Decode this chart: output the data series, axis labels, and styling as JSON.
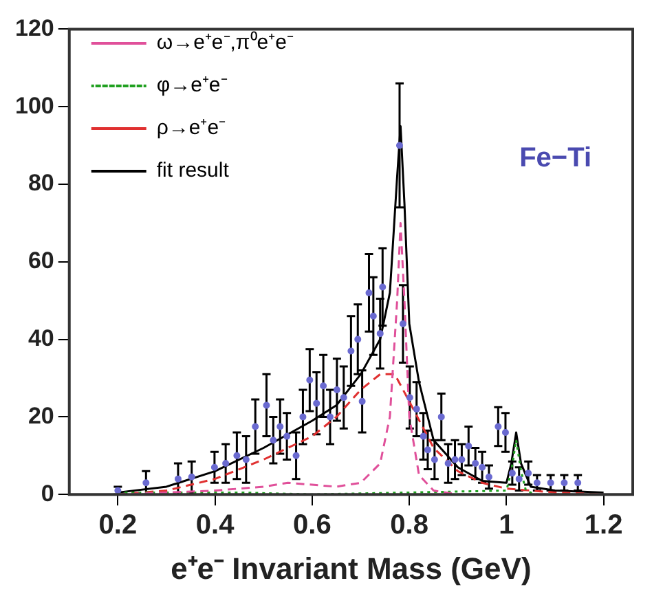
{
  "chart_data": {
    "type": "scatter",
    "xlabel": "e⁺e⁻ Invariant Mass (GeV)",
    "xlim": [
      0.1,
      1.26
    ],
    "xticks": [
      0.2,
      0.4,
      0.6,
      0.8,
      1,
      1.2
    ],
    "ylim": [
      0,
      120
    ],
    "yticks": [
      0,
      20,
      40,
      60,
      80,
      100,
      120
    ],
    "grid": false,
    "legend": "top left",
    "annotations": [
      "Fe−Ti"
    ],
    "series": [
      {
        "type": "scatter",
        "color": "#6a6ad0",
        "marker": "circle",
        "x": [
          0.2,
          0.258,
          0.324,
          0.352,
          0.399,
          0.422,
          0.445,
          0.464,
          0.483,
          0.506,
          0.52,
          0.534,
          0.548,
          0.567,
          0.581,
          0.595,
          0.609,
          0.623,
          0.637,
          0.651,
          0.665,
          0.68,
          0.694,
          0.703,
          0.717,
          0.726,
          0.74,
          0.745,
          0.78,
          0.787,
          0.801,
          0.815,
          0.829,
          0.838,
          0.852,
          0.866,
          0.88,
          0.894,
          0.908,
          0.922,
          0.936,
          0.95,
          0.964,
          0.983,
          0.998,
          1.012,
          1.026,
          1.045,
          1.063,
          1.091,
          1.119,
          1.147
        ],
        "values": [
          1,
          3,
          4,
          4.5,
          7,
          8,
          10,
          9,
          17.5,
          23,
          14,
          17.5,
          15,
          10,
          20,
          29.5,
          23.5,
          28,
          20,
          27,
          25,
          37,
          40,
          24,
          52,
          46,
          41.5,
          53.5,
          90,
          44,
          25,
          22,
          15,
          11.5,
          9,
          20,
          8,
          9,
          9,
          12.5,
          8,
          7,
          4.5,
          17.5,
          16,
          5.5,
          4,
          5.5,
          3,
          3,
          3,
          3
        ],
        "errors": [
          1,
          3,
          4,
          4,
          4,
          5,
          6,
          6,
          7,
          8,
          6,
          7,
          6,
          6,
          7,
          8,
          8,
          8,
          7,
          8,
          8,
          9,
          9,
          8,
          10,
          10,
          9,
          10,
          16,
          10,
          8,
          7,
          6,
          5,
          5,
          6,
          5,
          5,
          4,
          5,
          4,
          4,
          3,
          5,
          5,
          3,
          3,
          3,
          2,
          2,
          2,
          2
        ]
      },
      {
        "type": "line",
        "name": "ω→e⁺e⁻,π⁰e⁺e⁻",
        "color": "#e0509a",
        "line_style": "dashed",
        "x": [
          0.2,
          0.4,
          0.5,
          0.55,
          0.6,
          0.65,
          0.7,
          0.74,
          0.76,
          0.775,
          0.782,
          0.79,
          0.8,
          0.82,
          0.85,
          0.9,
          1.2
        ],
        "values": [
          0,
          1,
          2,
          3,
          2.5,
          2,
          3,
          8,
          20,
          50,
          70,
          50,
          20,
          5,
          1,
          0,
          0
        ]
      },
      {
        "type": "line",
        "name": "φ→e⁺e⁻",
        "color": "#20a020",
        "line_style": "dotted",
        "x": [
          0.2,
          0.45,
          0.6,
          1.0,
          1.01,
          1.02,
          1.03,
          1.04,
          1.06,
          1.2
        ],
        "values": [
          0.5,
          0.5,
          0,
          1,
          6,
          14,
          6,
          1,
          0,
          0
        ]
      },
      {
        "type": "line",
        "name": "ρ→e⁺e⁻",
        "color": "#e03030",
        "line_style": "dashed",
        "x": [
          0.2,
          0.3,
          0.4,
          0.5,
          0.6,
          0.65,
          0.7,
          0.74,
          0.77,
          0.8,
          0.85,
          0.9,
          0.95,
          1.0,
          1.1,
          1.2
        ],
        "values": [
          0,
          1,
          4,
          9,
          15,
          20,
          27,
          31,
          31,
          24,
          12,
          6,
          3,
          1.5,
          0.5,
          0
        ]
      },
      {
        "type": "line",
        "name": "fit result",
        "color": "#000000",
        "line_style": "solid",
        "x": [
          0.2,
          0.3,
          0.4,
          0.5,
          0.6,
          0.65,
          0.7,
          0.74,
          0.76,
          0.775,
          0.782,
          0.79,
          0.8,
          0.82,
          0.85,
          0.9,
          0.95,
          1.0,
          1.01,
          1.02,
          1.03,
          1.05,
          1.1,
          1.2
        ],
        "values": [
          0.5,
          2,
          6,
          12,
          19,
          23,
          31,
          40,
          52,
          82,
          95,
          75,
          44,
          29,
          14,
          7,
          3.5,
          3,
          8,
          16,
          8,
          2,
          1,
          0.5
        ]
      }
    ]
  }
}
